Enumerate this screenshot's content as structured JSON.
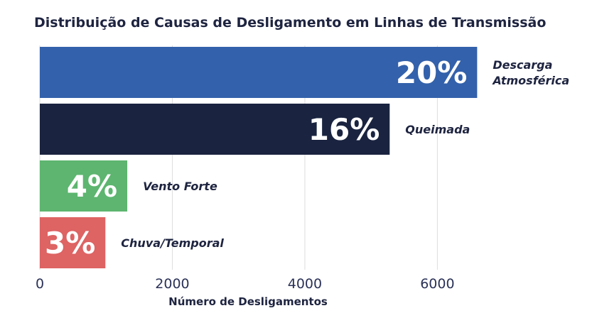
{
  "chart_data": {
    "type": "bar",
    "orientation": "horizontal",
    "title": "Distribuição de Causas de Desligamento em Linhas de Transmissão",
    "xlabel": "Número de Desligamentos",
    "ylabel": "",
    "xlim": [
      0,
      6800
    ],
    "xticks": [
      "0",
      "2000",
      "4000",
      "6000"
    ],
    "grid": true,
    "categories": [
      {
        "label_lines": [
          "Descarga",
          "Atmosférica"
        ],
        "value": 6600,
        "pct_label": "20%",
        "color": "#3361ab"
      },
      {
        "label_lines": [
          "Queimada"
        ],
        "value": 5280,
        "pct_label": "16%",
        "color": "#1a2440"
      },
      {
        "label_lines": [
          "Vento Forte"
        ],
        "value": 1320,
        "pct_label": "4%",
        "color": "#5db56f"
      },
      {
        "label_lines": [
          "Chuva/Temporal"
        ],
        "value": 990,
        "pct_label": "3%",
        "color": "#de6363"
      }
    ]
  }
}
